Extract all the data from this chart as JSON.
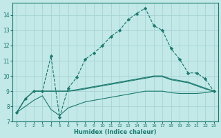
{
  "xlabel": "Humidex (Indice chaleur)",
  "xlim": [
    -0.5,
    23.5
  ],
  "ylim": [
    7.0,
    14.8
  ],
  "yticks": [
    7,
    8,
    9,
    10,
    11,
    12,
    13,
    14
  ],
  "xticks": [
    0,
    1,
    2,
    3,
    4,
    5,
    6,
    7,
    8,
    9,
    10,
    11,
    12,
    13,
    14,
    15,
    16,
    17,
    18,
    19,
    20,
    21,
    22,
    23
  ],
  "line_color": "#1a7a6e",
  "bg_color": "#c2e8e8",
  "grid_color": "#a8d4d4",
  "main_line_x": [
    0,
    1,
    2,
    3,
    4,
    5,
    6,
    7,
    8,
    9,
    10,
    11,
    12,
    13,
    14,
    15,
    16,
    17,
    18,
    19,
    20,
    21,
    22,
    23
  ],
  "main_line_y": [
    7.6,
    8.5,
    9.0,
    9.0,
    11.3,
    7.3,
    9.2,
    9.9,
    11.1,
    11.5,
    12.0,
    12.6,
    13.0,
    13.7,
    14.1,
    14.45,
    13.3,
    13.0,
    11.8,
    11.1,
    10.2,
    10.2,
    9.8,
    9.0
  ],
  "band1_y": [
    7.6,
    8.5,
    9.0,
    9.0,
    9.0,
    9.0,
    9.0,
    9.1,
    9.2,
    9.3,
    9.4,
    9.5,
    9.6,
    9.7,
    9.8,
    9.9,
    10.0,
    10.0,
    9.8,
    9.7,
    9.6,
    9.4,
    9.2,
    9.0
  ],
  "band2_y": [
    7.6,
    8.5,
    9.0,
    9.0,
    9.0,
    9.0,
    9.0,
    9.05,
    9.15,
    9.25,
    9.35,
    9.45,
    9.55,
    9.65,
    9.75,
    9.85,
    9.95,
    9.95,
    9.75,
    9.65,
    9.55,
    9.35,
    9.15,
    9.0
  ],
  "band3_y": [
    7.6,
    8.0,
    8.4,
    8.7,
    7.8,
    7.4,
    7.9,
    8.1,
    8.3,
    8.4,
    8.5,
    8.6,
    8.7,
    8.8,
    8.9,
    9.0,
    9.0,
    9.0,
    8.9,
    8.85,
    8.85,
    8.85,
    8.9,
    9.0
  ]
}
